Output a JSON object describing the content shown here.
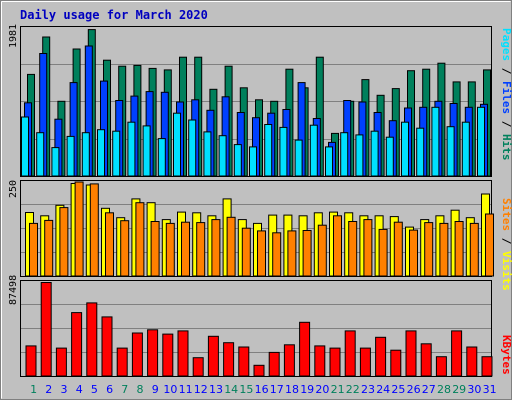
{
  "title": "Daily usage for March 2020",
  "colors": {
    "background": "#c0c0c0",
    "title": "#0000c0",
    "hits": "#00805c",
    "files": "#0040ff",
    "pages": "#00e0ff",
    "visits": "#ffff00",
    "sites": "#ff8000",
    "kbytes": "#ff0000",
    "weekend_day": "#00805c",
    "weekday": "#0000ff",
    "grid": "#808080"
  },
  "chart_data": [
    {
      "type": "bar",
      "panel": "top",
      "ymax_label": "1981",
      "ymax": 1981,
      "side_label": [
        "Pages",
        "Files",
        "Hits"
      ],
      "side_label_separator": " / ",
      "series": [
        {
          "name": "Hits",
          "values": [
            1360,
            1860,
            1000,
            1700,
            1960,
            1550,
            1470,
            1480,
            1440,
            1420,
            1590,
            1590,
            1160,
            1470,
            1180,
            1020,
            1000,
            1430,
            1180,
            1590,
            570,
            1000,
            1290,
            1080,
            1170,
            1410,
            1430,
            1510,
            1260,
            1260,
            1420
          ]
        },
        {
          "name": "Files",
          "values": [
            980,
            1640,
            760,
            1250,
            1740,
            1270,
            1010,
            1070,
            1130,
            1120,
            990,
            1020,
            880,
            1060,
            850,
            780,
            840,
            890,
            1250,
            770,
            450,
            1010,
            990,
            850,
            740,
            910,
            920,
            1000,
            970,
            920,
            960
          ]
        },
        {
          "name": "Pages",
          "values": [
            790,
            580,
            380,
            530,
            580,
            620,
            600,
            720,
            670,
            500,
            840,
            750,
            590,
            540,
            420,
            390,
            690,
            650,
            480,
            680,
            390,
            580,
            550,
            600,
            520,
            720,
            640,
            920,
            660,
            720,
            920
          ]
        }
      ]
    },
    {
      "type": "bar",
      "panel": "middle",
      "ymax_label": "250",
      "ymax": 250,
      "side_label": [
        "Sites",
        "Visits"
      ],
      "side_label_separator": " / ",
      "series": [
        {
          "name": "Visits",
          "values": [
            169,
            160,
            188,
            246,
            242,
            180,
            155,
            205,
            195,
            150,
            170,
            168,
            160,
            205,
            150,
            140,
            162,
            162,
            160,
            168,
            170,
            168,
            160,
            160,
            158,
            130,
            150,
            160,
            175,
            155,
            218
          ]
        },
        {
          "name": "Sites",
          "values": [
            140,
            148,
            182,
            250,
            245,
            168,
            147,
            195,
            145,
            140,
            143,
            142,
            150,
            156,
            127,
            120,
            115,
            120,
            121,
            135,
            160,
            145,
            150,
            124,
            143,
            122,
            142,
            140,
            145,
            140,
            165
          ]
        }
      ]
    },
    {
      "type": "bar",
      "panel": "bottom",
      "ymax_label": "87498",
      "ymax": 87498,
      "side_label": [
        "KBytes"
      ],
      "side_label_separator": "",
      "series": [
        {
          "name": "KBytes",
          "values": [
            28000,
            87000,
            26000,
            59000,
            68000,
            55000,
            26000,
            40000,
            43000,
            39000,
            42000,
            17000,
            37000,
            31000,
            27000,
            10000,
            22000,
            29000,
            50000,
            28000,
            26000,
            42000,
            26000,
            36000,
            24000,
            42000,
            30000,
            18000,
            42000,
            27000,
            18000
          ]
        }
      ]
    }
  ],
  "days": [
    "1",
    "2",
    "3",
    "4",
    "5",
    "6",
    "7",
    "8",
    "9",
    "10",
    "11",
    "12",
    "13",
    "14",
    "15",
    "16",
    "17",
    "18",
    "19",
    "20",
    "21",
    "22",
    "23",
    "24",
    "25",
    "26",
    "27",
    "28",
    "29",
    "30",
    "31"
  ],
  "weekend_days": [
    1,
    7,
    8,
    14,
    15,
    21,
    22,
    28,
    29
  ]
}
